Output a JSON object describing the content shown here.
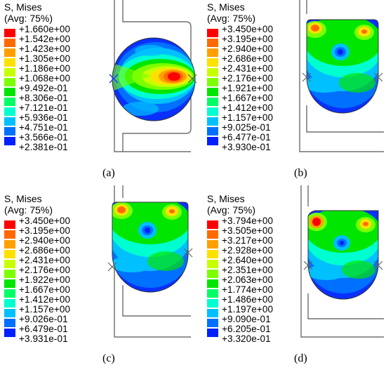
{
  "colors": [
    "#ff0000",
    "#ff6a00",
    "#ffa000",
    "#ffe100",
    "#c8ff00",
    "#7cff00",
    "#00e600",
    "#00ff66",
    "#00ffd0",
    "#00c0ff",
    "#0070ff",
    "#0020ff"
  ],
  "panels": [
    {
      "caption": "(a)",
      "title_line1": "S, Mises",
      "title_line2": "(Avg: 75%)",
      "ticks": [
        "+1.660e+00",
        "+1.542e+00",
        "+1.423e+00",
        "+1.305e+00",
        "+1.186e+00",
        "+1.068e+00",
        "+9.492e-01",
        "+8.306e-01",
        "+7.121e-01",
        "+5.936e-01",
        "+4.751e-01",
        "+3.566e-01",
        "+2.381e-01"
      ]
    },
    {
      "caption": "(b)",
      "title_line1": "S, Mises",
      "title_line2": "(Avg: 75%)",
      "ticks": [
        "+3.450e+00",
        "+3.195e+00",
        "+2.940e+00",
        "+2.686e+00",
        "+2.431e+00",
        "+2.176e+00",
        "+1.921e+00",
        "+1.667e+00",
        "+1.412e+00",
        "+1.157e+00",
        "+9.025e-01",
        "+6.477e-01",
        "+3.930e-01"
      ]
    },
    {
      "caption": "(c)",
      "title_line1": "S, Mises",
      "title_line2": "(Avg: 75%)",
      "ticks": [
        "+3.450e+00",
        "+3.195e+00",
        "+2.940e+00",
        "+2.686e+00",
        "+2.431e+00",
        "+2.176e+00",
        "+1.922e+00",
        "+1.667e+00",
        "+1.412e+00",
        "+1.157e+00",
        "+9.026e-01",
        "+6.479e-01",
        "+3.931e-01"
      ]
    },
    {
      "caption": "(d)",
      "title_line1": "S, Mises",
      "title_line2": "(Avg: 75%)",
      "ticks": [
        "+3.794e+00",
        "+3.505e+00",
        "+3.217e+00",
        "+2.928e+00",
        "+2.640e+00",
        "+2.351e+00",
        "+2.063e+00",
        "+1.774e+00",
        "+1.486e+00",
        "+1.197e+00",
        "+9.090e-01",
        "+6.205e-01",
        "+3.320e-01"
      ]
    }
  ]
}
